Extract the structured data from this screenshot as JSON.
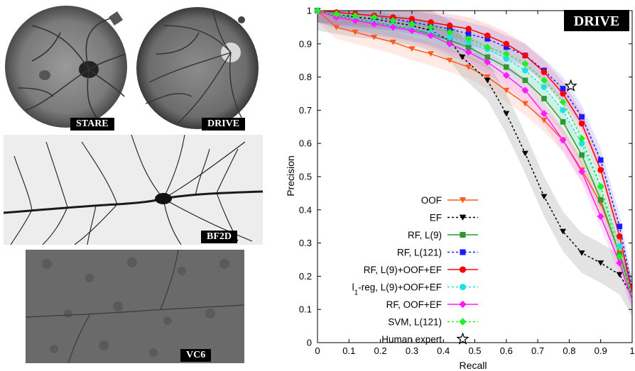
{
  "images": {
    "stare_label": "STARE",
    "drive_label": "DRIVE",
    "bf2d_label": "BF2D",
    "vc6_label": "VC6"
  },
  "chart_data": {
    "type": "line",
    "title": "DRIVE",
    "xlabel": "Recall",
    "ylabel": "Precision",
    "xlim": [
      0,
      1
    ],
    "ylim": [
      0,
      1
    ],
    "xticks": [
      "0",
      "0.1",
      "0.2",
      "0.3",
      "0.4",
      "0.5",
      "0.6",
      "0.7",
      "0.8",
      "0.9",
      "1"
    ],
    "yticks": [
      "0",
      "0.1",
      "0.2",
      "0.3",
      "0.4",
      "0.5",
      "0.6",
      "0.7",
      "0.8",
      "0.9",
      "1"
    ],
    "legend_position": "bottom-center",
    "series": [
      {
        "name": "OOF",
        "color": "#ff5a1f",
        "dash": "solid",
        "marker": "triangle-down",
        "band": true,
        "x": [
          0,
          0.06,
          0.12,
          0.18,
          0.24,
          0.3,
          0.36,
          0.42,
          0.48,
          0.54,
          0.6,
          0.66,
          0.72,
          0.78,
          0.84,
          0.9,
          0.96,
          1.0
        ],
        "y": [
          1.0,
          0.95,
          0.935,
          0.92,
          0.905,
          0.885,
          0.87,
          0.85,
          0.83,
          0.8,
          0.76,
          0.72,
          0.67,
          0.61,
          0.52,
          0.42,
          0.27,
          0.15
        ]
      },
      {
        "name": "EF",
        "color": "#000000",
        "dash": "dotted",
        "marker": "triangle-down",
        "band": true,
        "x": [
          0,
          0.06,
          0.12,
          0.18,
          0.24,
          0.3,
          0.36,
          0.42,
          0.46,
          0.54,
          0.6,
          0.66,
          0.72,
          0.78,
          0.84,
          0.9,
          0.96,
          1.0
        ],
        "y": [
          1.0,
          0.99,
          0.98,
          0.975,
          0.965,
          0.955,
          0.94,
          0.91,
          0.86,
          0.79,
          0.69,
          0.57,
          0.44,
          0.335,
          0.27,
          0.24,
          0.205,
          0.14
        ]
      },
      {
        "name": "RF, L(9)",
        "color": "#2d9a2d",
        "dash": "solid",
        "marker": "square",
        "band": true,
        "x": [
          0,
          0.06,
          0.12,
          0.18,
          0.24,
          0.3,
          0.36,
          0.42,
          0.48,
          0.54,
          0.6,
          0.66,
          0.72,
          0.78,
          0.84,
          0.9,
          0.96,
          1.0
        ],
        "y": [
          1.0,
          0.985,
          0.975,
          0.965,
          0.955,
          0.945,
          0.93,
          0.91,
          0.89,
          0.86,
          0.83,
          0.79,
          0.735,
          0.665,
          0.565,
          0.43,
          0.265,
          0.14
        ]
      },
      {
        "name": "RF, L(121)",
        "color": "#1a1aff",
        "dash": "dotted",
        "marker": "square",
        "band": true,
        "x": [
          0,
          0.06,
          0.12,
          0.18,
          0.24,
          0.3,
          0.36,
          0.42,
          0.48,
          0.54,
          0.6,
          0.66,
          0.72,
          0.78,
          0.84,
          0.9,
          0.96,
          1.0
        ],
        "y": [
          1.0,
          0.99,
          0.985,
          0.98,
          0.975,
          0.965,
          0.955,
          0.945,
          0.93,
          0.915,
          0.89,
          0.865,
          0.82,
          0.765,
          0.68,
          0.55,
          0.35,
          0.16
        ]
      },
      {
        "name": "RF, L(9)+OOF+EF",
        "color": "#ff0000",
        "dash": "solid",
        "marker": "circle",
        "band": true,
        "x": [
          0,
          0.06,
          0.12,
          0.18,
          0.24,
          0.3,
          0.36,
          0.42,
          0.48,
          0.54,
          0.6,
          0.66,
          0.72,
          0.78,
          0.84,
          0.9,
          0.96,
          1.0
        ],
        "y": [
          1.0,
          0.995,
          0.99,
          0.985,
          0.98,
          0.975,
          0.965,
          0.955,
          0.945,
          0.925,
          0.9,
          0.865,
          0.815,
          0.75,
          0.66,
          0.52,
          0.32,
          0.15
        ]
      },
      {
        "name": "l1-reg, L(9)+OOF+EF",
        "color": "#22e0e0",
        "dash": "dotted",
        "marker": "circle",
        "band": true,
        "x": [
          0,
          0.06,
          0.12,
          0.18,
          0.24,
          0.3,
          0.36,
          0.42,
          0.48,
          0.54,
          0.6,
          0.66,
          0.72,
          0.78,
          0.84,
          0.9,
          0.96,
          1.0
        ],
        "y": [
          1.0,
          0.985,
          0.975,
          0.965,
          0.955,
          0.945,
          0.935,
          0.92,
          0.905,
          0.885,
          0.855,
          0.82,
          0.77,
          0.7,
          0.6,
          0.47,
          0.29,
          0.14
        ]
      },
      {
        "name": "RF, OOF+EF",
        "color": "#ff1aff",
        "dash": "solid",
        "marker": "diamond",
        "band": true,
        "x": [
          0,
          0.06,
          0.12,
          0.18,
          0.24,
          0.3,
          0.36,
          0.42,
          0.48,
          0.54,
          0.6,
          0.66,
          0.72,
          0.78,
          0.84,
          0.9,
          0.96,
          1.0
        ],
        "y": [
          1.0,
          0.98,
          0.97,
          0.96,
          0.95,
          0.94,
          0.925,
          0.9,
          0.875,
          0.845,
          0.805,
          0.76,
          0.69,
          0.61,
          0.515,
          0.38,
          0.24,
          0.13
        ]
      },
      {
        "name": "SVM, L(121)",
        "color": "#22ee22",
        "dash": "dotted",
        "marker": "diamond",
        "band": false,
        "x": [
          0,
          0.06,
          0.12,
          0.18,
          0.24,
          0.3,
          0.36,
          0.42,
          0.48,
          0.54,
          0.6,
          0.66,
          0.72,
          0.78,
          0.84,
          0.9,
          0.96,
          1.0
        ],
        "y": [
          1.0,
          0.99,
          0.985,
          0.98,
          0.97,
          0.96,
          0.95,
          0.935,
          0.915,
          0.89,
          0.87,
          0.84,
          0.79,
          0.725,
          0.615,
          0.47,
          0.26,
          0.14
        ]
      }
    ],
    "human_expert": {
      "name": "Human expert",
      "x": 0.805,
      "y": 0.773,
      "marker": "star"
    }
  }
}
